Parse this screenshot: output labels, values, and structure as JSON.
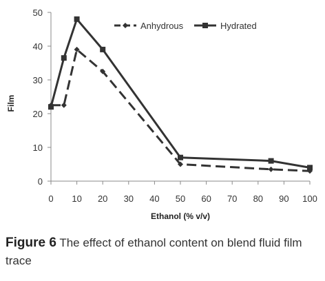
{
  "chart_data": {
    "type": "line",
    "x": [
      0,
      5,
      10,
      20,
      50,
      85,
      100
    ],
    "x_ticks": [
      0,
      10,
      20,
      30,
      40,
      50,
      60,
      70,
      80,
      90,
      100
    ],
    "y_ticks": [
      0,
      10,
      20,
      30,
      40,
      50
    ],
    "xlim": [
      0,
      100
    ],
    "ylim": [
      0,
      50
    ],
    "xlabel": "Ethanol (% v/v)",
    "ylabel": "Film",
    "grid": false,
    "legend_position": "top-right",
    "series": [
      {
        "name": "Anhydrous",
        "values": [
          22.5,
          22.5,
          39,
          32.5,
          5,
          3.5,
          3
        ],
        "line_style": "dashed",
        "marker": "diamond",
        "color": "#333333"
      },
      {
        "name": "Hydrated",
        "values": [
          22,
          36.5,
          48,
          39,
          7,
          6,
          4
        ],
        "line_style": "solid",
        "marker": "square",
        "color": "#333333"
      }
    ]
  },
  "caption": {
    "label": "Figure 6",
    "text": " The effect of ethanol content on blend fluid film trace"
  }
}
